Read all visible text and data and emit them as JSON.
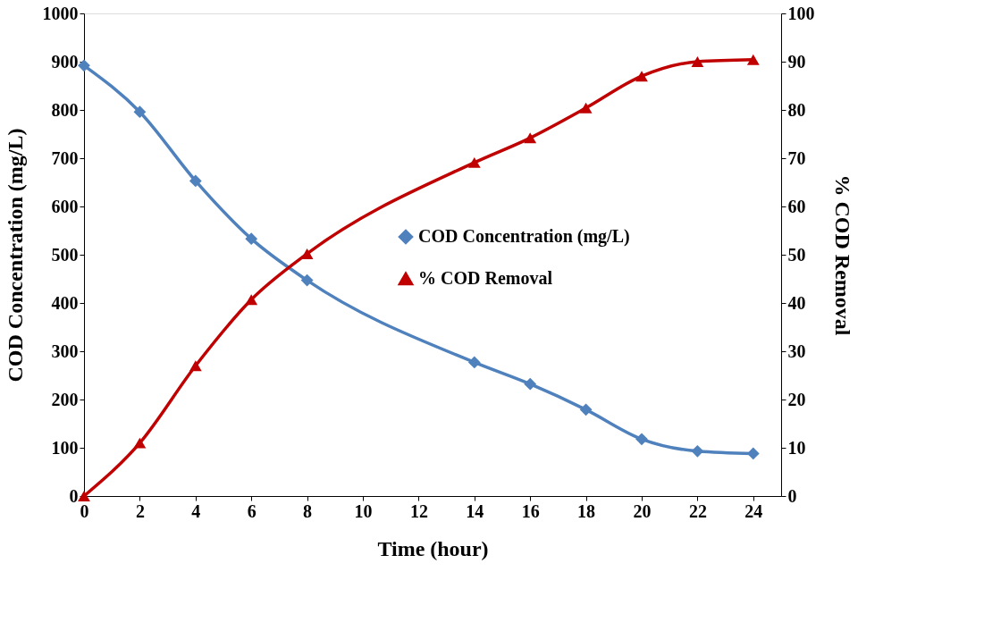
{
  "chart_data": {
    "type": "line",
    "xlabel": "Time (hour)",
    "ylabel": "COD  Concentration (mg/L)",
    "y2label": "% COD Removal",
    "x": [
      0,
      2,
      4,
      6,
      8,
      14,
      16,
      18,
      20,
      22,
      24
    ],
    "series": [
      {
        "name": "COD  Concentration (mg/L)",
        "color": "#4f81bd",
        "marker": "diamond",
        "values": [
          892,
          796,
          653,
          533,
          447,
          277,
          232,
          179,
          118,
          93,
          88
        ]
      },
      {
        "name": "% COD Removal",
        "color": "#c00000",
        "marker": "triangle",
        "axis": "y2",
        "values": [
          0,
          11,
          27,
          40.7,
          50.2,
          69.1,
          74.2,
          80.4,
          87,
          90,
          90.4
        ]
      }
    ],
    "xlim": [
      0,
      25
    ],
    "xticks": [
      0,
      2,
      4,
      6,
      8,
      10,
      12,
      14,
      16,
      18,
      20,
      22,
      24
    ],
    "ylim": [
      0,
      1000
    ],
    "yticks": [
      0,
      100,
      200,
      300,
      400,
      500,
      600,
      700,
      800,
      900,
      1000
    ],
    "y2lim": [
      0,
      100
    ],
    "y2ticks": [
      0,
      10,
      20,
      30,
      40,
      50,
      60,
      70,
      80,
      90,
      100
    ],
    "grid": false,
    "legend": "right",
    "line_style": "solid"
  }
}
